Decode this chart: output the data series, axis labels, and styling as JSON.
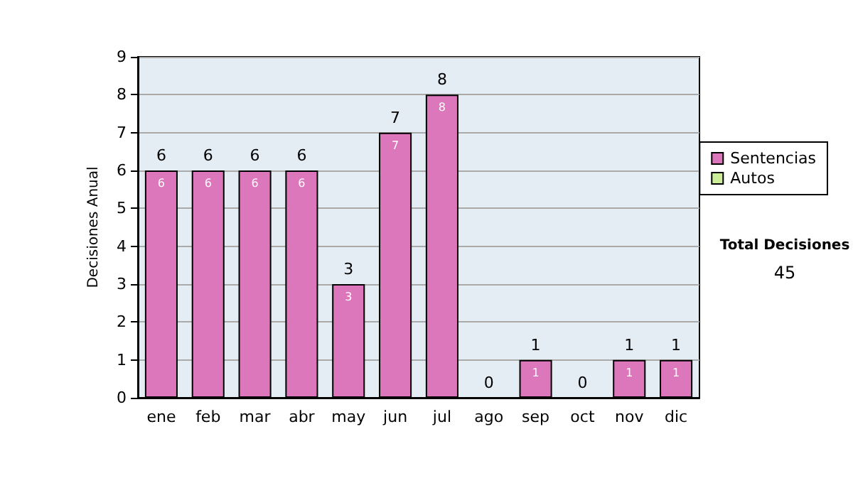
{
  "chart_data": {
    "type": "bar",
    "ylabel": "Decisiones Anual",
    "categories": [
      "ene",
      "feb",
      "mar",
      "abr",
      "may",
      "jun",
      "jul",
      "ago",
      "sep",
      "oct",
      "nov",
      "dic"
    ],
    "series": [
      {
        "name": "Sentencias",
        "color": "#dd77bb",
        "values": [
          6,
          6,
          6,
          6,
          3,
          7,
          8,
          0,
          1,
          0,
          1,
          1
        ],
        "value_labels": [
          "6",
          "6",
          "6",
          "6",
          "3",
          "7",
          "8",
          null,
          "1",
          null,
          "1",
          "1"
        ]
      },
      {
        "name": "Autos",
        "color": "#ccee99",
        "values": [
          0,
          0,
          0,
          0,
          0,
          0,
          0,
          0,
          0,
          0,
          0,
          0
        ]
      }
    ],
    "stacked": true,
    "totals": [
      "6",
      "6",
      "6",
      "6",
      "3",
      "7",
      "8",
      "0",
      "1",
      "0",
      "1",
      "1"
    ],
    "ylim": [
      0,
      9
    ],
    "yticks": [
      0,
      1,
      2,
      3,
      4,
      5,
      6,
      7,
      8,
      9
    ],
    "grid": "y",
    "legend": "right",
    "annotations": [
      "Total Decisiones",
      "45"
    ]
  }
}
